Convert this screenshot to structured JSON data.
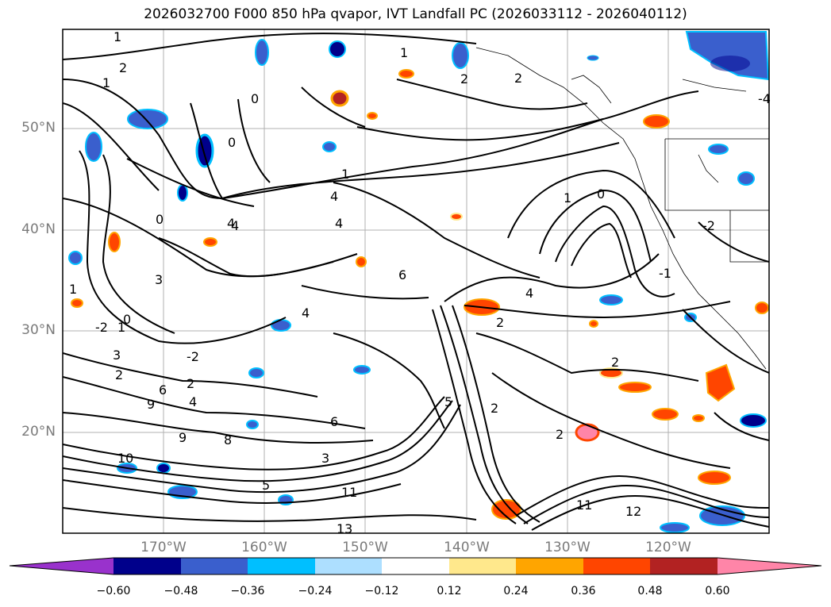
{
  "title": "2026032700 F000 850 hPa qvapor, IVT Landfall PC (2026033112 - 2026040112)",
  "map": {
    "lat_labels": [
      "50°N",
      "40°N",
      "30°N",
      "20°N"
    ],
    "lon_labels": [
      "170°W",
      "160°W",
      "150°W",
      "140°W",
      "130°W",
      "120°W"
    ],
    "contour_labels": [
      "1",
      "2",
      "2",
      "1",
      "0",
      "0",
      "1",
      "4",
      "4",
      "4",
      "0",
      "-2",
      "2",
      "6",
      "2",
      "2",
      "2",
      "1",
      "0",
      "-1",
      "3",
      "-2",
      "1",
      "0",
      "1",
      "4",
      "-2",
      "2",
      "2",
      "3",
      "9",
      "4",
      "6",
      "8",
      "3",
      "9",
      "5",
      "5",
      "11",
      "12",
      "13",
      "4",
      "4",
      "1",
      "-4",
      "6",
      "10",
      "11",
      "2"
    ]
  },
  "colorbar": {
    "ticks": [
      "−0.60",
      "−0.48",
      "−0.36",
      "−0.24",
      "−0.12",
      "0.12",
      "0.24",
      "0.36",
      "0.48",
      "0.60"
    ],
    "colors": [
      "#9932CC",
      "#00008B",
      "#3A5FCD",
      "#00BFFF",
      "#ADDFFF",
      "#FFFFFF",
      "#FFE88C",
      "#FFA500",
      "#FF4500",
      "#B22222",
      "#FF85A8"
    ]
  }
}
